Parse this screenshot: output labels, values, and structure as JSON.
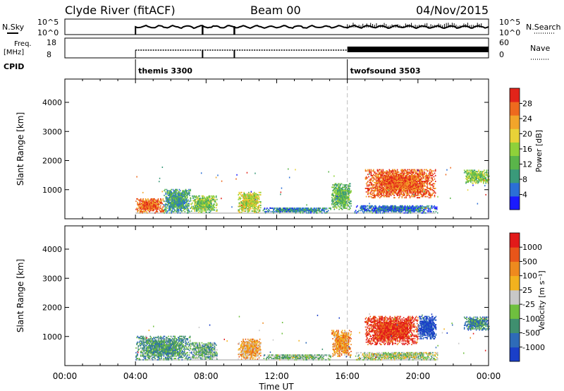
{
  "header": {
    "station": "Clyde River (fitACF)",
    "beam": "Beam 00",
    "date": "04/Nov/2015"
  },
  "top_panels": {
    "nsky_label": "N.Sky",
    "nsky_ticks": [
      "10^5",
      "10^0"
    ],
    "nsearch_label": "N.Search",
    "nsearch_ticks": [
      "10^5",
      "10^0"
    ],
    "freq_label": "Freq.",
    "freq_unit": "[MHz]",
    "freq_ticks": [
      "18",
      "8"
    ],
    "nave_label": "Nave",
    "nave_ticks": [
      "60",
      "0"
    ],
    "cpid_label": "CPID",
    "cpid_segments": [
      {
        "name": "themis 3300",
        "start_h": 4.0
      },
      {
        "name": "twofsound 3503",
        "start_h": 16.0
      }
    ]
  },
  "colors": {
    "noise": "#000000",
    "dash": "#bdbdbd",
    "ground": "#9a9a9a"
  },
  "chart_data": [
    {
      "type": "heatmap",
      "panel": "power",
      "ylabel": "Slant Range [km]",
      "yticks": [
        "1000",
        "2000",
        "3000",
        "4000"
      ],
      "ylim": [
        0,
        4800
      ],
      "xlim_h": [
        0,
        24
      ],
      "colorbar": {
        "label": "Power [dB]",
        "ticks": [
          "4",
          "8",
          "12",
          "16",
          "20",
          "24",
          "28"
        ],
        "range": [
          0,
          32
        ],
        "colors": [
          "#1a1aff",
          "#2b6fd6",
          "#3a9a7a",
          "#5ab54a",
          "#8fd13a",
          "#e8d238",
          "#f2a52a",
          "#ee6a1e",
          "#e2241a"
        ]
      },
      "blobs": [
        {
          "t0": 4.0,
          "t1": 5.6,
          "r0": 180,
          "r1": 700,
          "level": 0.85
        },
        {
          "t0": 5.6,
          "t1": 7.1,
          "r0": 180,
          "r1": 1000,
          "level": 0.3
        },
        {
          "t0": 7.1,
          "t1": 8.6,
          "r0": 200,
          "r1": 800,
          "level": 0.45
        },
        {
          "t0": 9.8,
          "t1": 11.1,
          "r0": 200,
          "r1": 900,
          "level": 0.55
        },
        {
          "t0": 11.2,
          "t1": 15.1,
          "r0": 180,
          "r1": 380,
          "level": 0.25
        },
        {
          "t0": 15.1,
          "t1": 16.2,
          "r0": 300,
          "r1": 1200,
          "level": 0.4
        },
        {
          "t0": 16.4,
          "t1": 21.1,
          "r0": 180,
          "r1": 450,
          "level": 0.2
        },
        {
          "t0": 17.0,
          "t1": 21.0,
          "r0": 700,
          "r1": 1700,
          "level": 0.85
        },
        {
          "t0": 22.6,
          "t1": 24.0,
          "r0": 1200,
          "r1": 1650,
          "level": 0.45
        }
      ]
    },
    {
      "type": "heatmap",
      "panel": "velocity",
      "ylabel": "Slant Range [km]",
      "yticks": [
        "1000",
        "2000",
        "3000",
        "4000"
      ],
      "ylim": [
        0,
        4800
      ],
      "xlim_h": [
        0,
        24
      ],
      "xticks": [
        "00:00",
        "04:00",
        "08:00",
        "12:00",
        "16:00",
        "20:00",
        "00:00"
      ],
      "xlabel": "Time UT",
      "colorbar": {
        "label": "Velocity [m s⁻¹]",
        "ticks": [
          "1000",
          "500",
          "100",
          "25",
          "-25",
          "-100",
          "-500",
          "-1000"
        ],
        "colors": [
          "#1a3fc8",
          "#2e6bb8",
          "#3f8f6f",
          "#6fbf3f",
          "#c8c8c8",
          "#f2b21e",
          "#ee8a1e",
          "#e8551a",
          "#e21a1a"
        ]
      },
      "blobs": [
        {
          "t0": 4.0,
          "t1": 7.1,
          "r0": 180,
          "r1": 1000,
          "level": 0.3
        },
        {
          "t0": 7.1,
          "t1": 8.6,
          "r0": 200,
          "r1": 800,
          "level": 0.35
        },
        {
          "t0": 9.8,
          "t1": 11.1,
          "r0": 200,
          "r1": 900,
          "level": 0.65
        },
        {
          "t0": 11.2,
          "t1": 15.1,
          "r0": 180,
          "r1": 380,
          "level": 0.4
        },
        {
          "t0": 15.1,
          "t1": 16.2,
          "r0": 300,
          "r1": 1200,
          "level": 0.7
        },
        {
          "t0": 16.4,
          "t1": 21.1,
          "r0": 180,
          "r1": 450,
          "level": 0.45
        },
        {
          "t0": 17.0,
          "t1": 20.0,
          "r0": 700,
          "r1": 1700,
          "level": 0.9
        },
        {
          "t0": 20.0,
          "t1": 21.0,
          "r0": 900,
          "r1": 1700,
          "level": 0.05
        },
        {
          "t0": 22.6,
          "t1": 24.0,
          "r0": 1200,
          "r1": 1650,
          "level": 0.25
        }
      ]
    }
  ]
}
